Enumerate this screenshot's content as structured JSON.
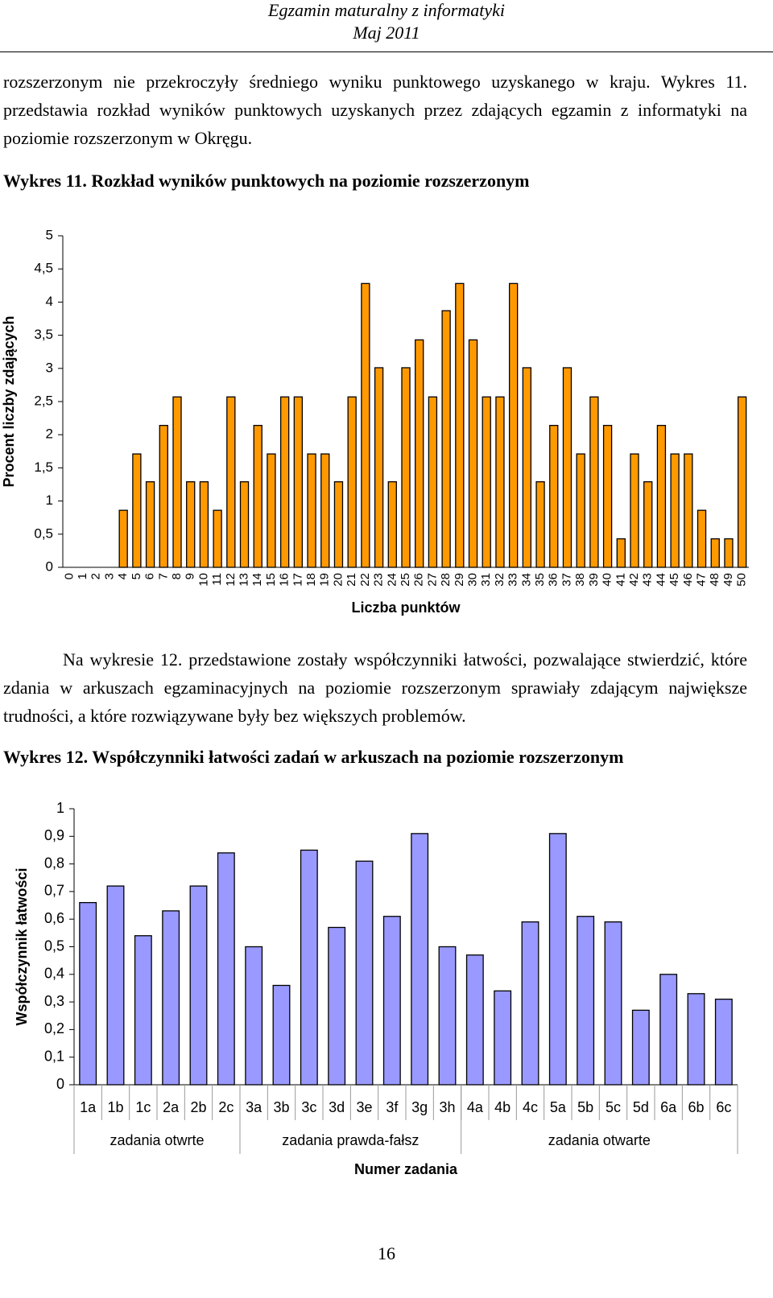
{
  "header": {
    "title": "Egzamin maturalny z informatyki",
    "date": "Maj 2011"
  },
  "paragraphs": [
    "rozszerzonym nie przekroczyły średniego wyniku punktowego uzyskanego w kraju. Wykres 11. przedstawia rozkład wyników punktowych uzyskanych przez zdających egzamin z informatyki na poziomie rozszerzonym w Okręgu.",
    "Na wykresie 12. przedstawione zostały współczynniki łatwości, pozwalające stwierdzić, które zdania w arkuszach egzaminacyjnych na poziomie rozszerzonym sprawiały zdającym największe trudności, a które rozwiązywane były bez większych problemów."
  ],
  "chart_data": [
    {
      "type": "bar",
      "title": "Wykres 11. Rozkład wyników punktowych na poziomie rozszerzonym",
      "x_label": "Liczba punktów",
      "y_label": "Procent liczby zdających",
      "color": "#ff9900",
      "grid": false,
      "categories": [
        "0",
        "1",
        "2",
        "3",
        "4",
        "5",
        "6",
        "7",
        "8",
        "9",
        "10",
        "11",
        "12",
        "13",
        "14",
        "15",
        "16",
        "17",
        "18",
        "19",
        "20",
        "21",
        "22",
        "23",
        "24",
        "25",
        "26",
        "27",
        "28",
        "29",
        "30",
        "31",
        "32",
        "33",
        "34",
        "35",
        "36",
        "37",
        "38",
        "39",
        "40",
        "41",
        "42",
        "43",
        "44",
        "45",
        "46",
        "47",
        "48",
        "49",
        "50"
      ],
      "values": [
        0,
        0,
        0,
        0,
        0.86,
        1.71,
        1.29,
        2.14,
        2.57,
        1.29,
        1.29,
        0.86,
        2.57,
        1.29,
        2.14,
        1.71,
        2.57,
        2.57,
        1.71,
        1.71,
        1.29,
        2.57,
        4.28,
        3.01,
        1.29,
        3.01,
        3.43,
        2.57,
        3.87,
        4.28,
        3.43,
        2.57,
        2.57,
        4.28,
        3.01,
        1.29,
        2.14,
        3.01,
        1.71,
        2.57,
        2.14,
        0.43,
        1.71,
        1.29,
        2.14,
        1.71,
        1.71,
        0.86,
        0.43,
        0.43,
        2.57
      ],
      "ylim": [
        0,
        5
      ],
      "yticks": [
        0,
        {
          "value": 0.5,
          "label": "0,5"
        },
        1,
        {
          "value": 1.5,
          "label": "1,5"
        },
        2,
        {
          "value": 2.5,
          "label": "2,5"
        },
        3,
        {
          "value": 3.5,
          "label": "3,5"
        },
        4,
        {
          "value": 4.5,
          "label": "4,5"
        },
        5
      ]
    },
    {
      "type": "bar",
      "title": "Wykres 12. Współczynniki łatwości zadań w arkuszach na poziomie rozszerzonym",
      "x_label": "Numer zadania",
      "y_label": "Współczynnik łatwości",
      "color": "#9999ff",
      "grid": false,
      "categories": [
        "1a",
        "1b",
        "1c",
        "2a",
        "2b",
        "2c",
        "3a",
        "3b",
        "3c",
        "3d",
        "3e",
        "3f",
        "3g",
        "3h",
        "4a",
        "4b",
        "4c",
        "5a",
        "5b",
        "5c",
        "5d",
        "6a",
        "6b",
        "6c"
      ],
      "values": [
        0.66,
        0.72,
        0.54,
        0.63,
        0.72,
        0.84,
        0.5,
        0.36,
        0.85,
        0.57,
        0.81,
        0.61,
        0.91,
        0.5,
        0.47,
        0.34,
        0.59,
        0.91,
        0.61,
        0.59,
        0.27,
        0.4,
        0.33,
        0.31
      ],
      "groups": [
        {
          "name": "zadania otwrte",
          "count": 6
        },
        {
          "name": "zadania prawda-fałsz",
          "count": 8
        },
        {
          "name": "zadania otwarte",
          "count": 10
        }
      ],
      "ylim": [
        0,
        1
      ],
      "yticks": [
        0,
        {
          "value": 0.1,
          "label": "0,1"
        },
        {
          "value": 0.2,
          "label": "0,2"
        },
        {
          "value": 0.3,
          "label": "0,3"
        },
        {
          "value": 0.4,
          "label": "0,4"
        },
        {
          "value": 0.5,
          "label": "0,5"
        },
        {
          "value": 0.6,
          "label": "0,6"
        },
        {
          "value": 0.7,
          "label": "0,7"
        },
        {
          "value": 0.8,
          "label": "0,8"
        },
        {
          "value": 0.9,
          "label": "0,9"
        },
        1
      ]
    }
  ],
  "page_number": "16"
}
